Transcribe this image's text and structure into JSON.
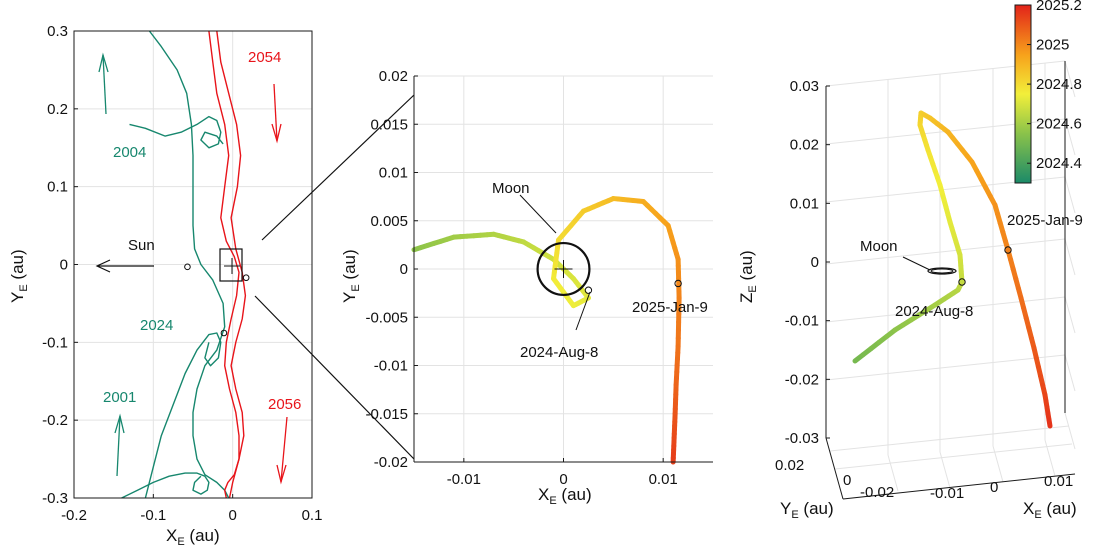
{
  "colors": {
    "green": "#17876e",
    "red": "#e8141a",
    "grid": "#e3e3e3",
    "axis": "#1a1a1a"
  },
  "chart_data": [
    {
      "type": "line",
      "panel": "left",
      "xlabel_main": "X",
      "xlabel_sub": "E",
      "xlabel_unit": " (au)",
      "ylabel_main": "Y",
      "ylabel_sub": "E",
      "ylabel_unit": " (au)",
      "xlim": [
        -0.2,
        0.1
      ],
      "ylim": [
        -0.3,
        0.3
      ],
      "xticks": [
        "-0.2",
        "-0.1",
        "0",
        "0.1"
      ],
      "yticks": [
        "-0.3",
        "-0.2",
        "-0.1",
        "0",
        "0.1",
        "0.2",
        "0.3"
      ],
      "annotations": {
        "sun": "Sun",
        "y2004": "2004",
        "y2024": "2024",
        "y2001": "2001",
        "y2054": "2054",
        "y2056": "2056"
      },
      "series": [
        {
          "color": "green",
          "x": [
            -0.105,
            -0.09,
            -0.07,
            -0.058,
            -0.052,
            -0.05,
            -0.05,
            -0.05,
            -0.048,
            -0.04,
            -0.025,
            -0.012,
            -0.01,
            -0.02,
            -0.035,
            -0.045,
            -0.05,
            -0.05,
            -0.045,
            -0.035,
            -0.02,
            -0.01,
            -0.005,
            -0.005
          ],
          "y": [
            0.3,
            0.28,
            0.25,
            0.22,
            0.18,
            0.14,
            0.1,
            0.05,
            0.02,
            0.0,
            -0.02,
            -0.05,
            -0.08,
            -0.11,
            -0.13,
            -0.16,
            -0.19,
            -0.22,
            -0.25,
            -0.27,
            -0.28,
            -0.29,
            -0.3,
            -0.3
          ]
        },
        {
          "color": "green",
          "x": [
            -0.13,
            -0.11,
            -0.085,
            -0.065,
            -0.045,
            -0.03,
            -0.02,
            -0.015,
            -0.018,
            -0.03,
            -0.04,
            -0.035,
            -0.02,
            -0.012
          ],
          "y": [
            0.18,
            0.175,
            0.165,
            0.17,
            0.18,
            0.19,
            0.185,
            0.17,
            0.155,
            0.15,
            0.16,
            0.17,
            0.165,
            0.155
          ]
        },
        {
          "color": "green",
          "x": [
            -0.11,
            -0.1,
            -0.09,
            -0.075,
            -0.06,
            -0.045,
            -0.03,
            -0.02,
            -0.015,
            -0.018,
            -0.028,
            -0.035,
            -0.03
          ],
          "y": [
            -0.3,
            -0.26,
            -0.22,
            -0.18,
            -0.14,
            -0.11,
            -0.09,
            -0.088,
            -0.1,
            -0.12,
            -0.13,
            -0.12,
            -0.1
          ]
        },
        {
          "color": "green",
          "x": [
            -0.14,
            -0.12,
            -0.1,
            -0.08,
            -0.06,
            -0.045,
            -0.035,
            -0.03,
            -0.032,
            -0.04,
            -0.05,
            -0.048,
            -0.04
          ],
          "y": [
            -0.3,
            -0.29,
            -0.28,
            -0.272,
            -0.268,
            -0.268,
            -0.272,
            -0.28,
            -0.29,
            -0.295,
            -0.29,
            -0.28,
            -0.272
          ]
        },
        {
          "color": "red",
          "x": [
            -0.03,
            -0.025,
            -0.02,
            -0.01,
            -0.005,
            -0.01,
            -0.015,
            -0.008,
            0.002,
            0.008,
            0.005,
            -0.002,
            -0.008,
            -0.01,
            -0.004,
            0.004,
            0.008,
            0.008,
            0.002,
            -0.006,
            -0.01,
            -0.008
          ],
          "y": [
            0.3,
            0.26,
            0.22,
            0.18,
            0.14,
            0.1,
            0.06,
            0.03,
            0.01,
            -0.01,
            -0.04,
            -0.07,
            -0.1,
            -0.13,
            -0.16,
            -0.19,
            -0.22,
            -0.25,
            -0.27,
            -0.28,
            -0.29,
            -0.3
          ]
        },
        {
          "color": "red",
          "x": [
            -0.02,
            -0.015,
            -0.005,
            0.005,
            0.01,
            0.006,
            -0.002,
            0.004,
            0.012,
            0.016,
            0.012,
            0.004,
            -0.002,
            0.004,
            0.012,
            0.014,
            0.008,
            0.0,
            -0.004
          ],
          "y": [
            0.3,
            0.26,
            0.22,
            0.18,
            0.14,
            0.1,
            0.06,
            0.02,
            -0.01,
            -0.04,
            -0.07,
            -0.1,
            -0.13,
            -0.16,
            -0.19,
            -0.22,
            -0.25,
            -0.28,
            -0.3
          ]
        }
      ],
      "markers": [
        {
          "x": -0.057,
          "y": -0.003
        },
        {
          "x": -0.011,
          "y": -0.088
        },
        {
          "x": 0.017,
          "y": -0.017
        }
      ]
    },
    {
      "type": "line",
      "panel": "middle",
      "xlabel_main": "X",
      "xlabel_sub": "E",
      "xlabel_unit": " (au)",
      "ylabel_main": "Y",
      "ylabel_sub": "E",
      "ylabel_unit": " (au)",
      "xlim": [
        -0.015,
        0.015
      ],
      "ylim": [
        -0.02,
        0.02
      ],
      "xticks": [
        "-0.01",
        "0",
        "0.01"
      ],
      "yticks": [
        "-0.02",
        "-0.015",
        "-0.01",
        "-0.005",
        "0",
        "0.005",
        "0.01",
        "0.015",
        "0.02"
      ],
      "annotations": {
        "moon": "Moon",
        "start": "2024-Aug-8",
        "end": "2025-Jan-9"
      },
      "time_colored_path": {
        "t": [
          2024.55,
          2024.59,
          2024.62,
          2024.65,
          2024.68,
          2024.7,
          2024.72,
          2024.74,
          2024.76,
          2024.8,
          2024.84,
          2024.88,
          2024.92,
          2024.95,
          2024.98,
          2025.01,
          2025.04,
          2025.07,
          2025.1,
          2025.12,
          2025.15
        ],
        "x": [
          -0.015,
          -0.011,
          -0.007,
          -0.004,
          -0.001,
          0.001,
          0.0025,
          0.001,
          -0.001,
          -0.0005,
          0.002,
          0.005,
          0.008,
          0.0105,
          0.0115,
          0.0116,
          0.0115,
          0.0113,
          0.0112,
          0.0111,
          0.011
        ],
        "y": [
          0.002,
          0.0033,
          0.0036,
          0.0028,
          0.001,
          -0.001,
          -0.003,
          -0.0038,
          -0.001,
          0.003,
          0.006,
          0.0073,
          0.007,
          0.0045,
          0.001,
          -0.003,
          -0.008,
          -0.012,
          -0.015,
          -0.0175,
          -0.02
        ]
      },
      "moon_orbit_radius": 0.0026,
      "markers": [
        {
          "x": 0.0025,
          "y": -0.0022
        },
        {
          "x": 0.0115,
          "y": -0.0015
        }
      ]
    },
    {
      "type": "line",
      "panel": "right-3d",
      "xlabel_main": "X",
      "xlabel_sub": "E",
      "xlabel_unit": " (au)",
      "ylabel_main": "Y",
      "ylabel_sub": "E",
      "ylabel_unit": " (au)",
      "zlabel_main": "Z",
      "zlabel_sub": "E",
      "zlabel_unit": " (au)",
      "zlim": [
        -0.03,
        0.03
      ],
      "zticks": [
        "-0.03",
        "-0.02",
        "-0.01",
        "0",
        "0.01",
        "0.02",
        "0.03"
      ],
      "xticks": [
        "-0.01",
        "0",
        "0.01"
      ],
      "yticks": [
        "0.02",
        "0",
        "-0.02"
      ],
      "annotations": {
        "moon": "Moon",
        "start": "2024-Aug-8",
        "end": "2025-Jan-9"
      },
      "colorbar": {
        "range": [
          2024.3,
          2025.2
        ],
        "ticks": [
          "2024.4",
          "2024.6",
          "2024.8",
          "2025",
          "2025.2"
        ]
      }
    }
  ]
}
